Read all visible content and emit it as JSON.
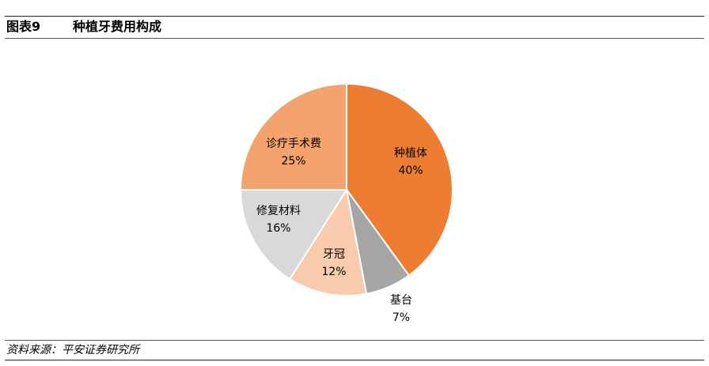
{
  "figure": {
    "label": "图表9",
    "title": "种植牙费用构成",
    "source": "资料来源：平安证券研究所"
  },
  "chart_data": {
    "type": "pie",
    "title": "种植牙费用构成",
    "slices": [
      {
        "name": "种植体",
        "value": 40,
        "label": "40%",
        "color": "#ED7D31"
      },
      {
        "name": "基台",
        "value": 7,
        "label": "7%",
        "color": "#A5A5A5"
      },
      {
        "name": "牙冠",
        "value": 12,
        "label": "12%",
        "color": "#F8CBAD"
      },
      {
        "name": "修复材料",
        "value": 16,
        "label": "16%",
        "color": "#D9D9D9"
      },
      {
        "name": "诊疗手术费",
        "value": 25,
        "label": "25%",
        "color": "#F4A26E"
      }
    ]
  }
}
